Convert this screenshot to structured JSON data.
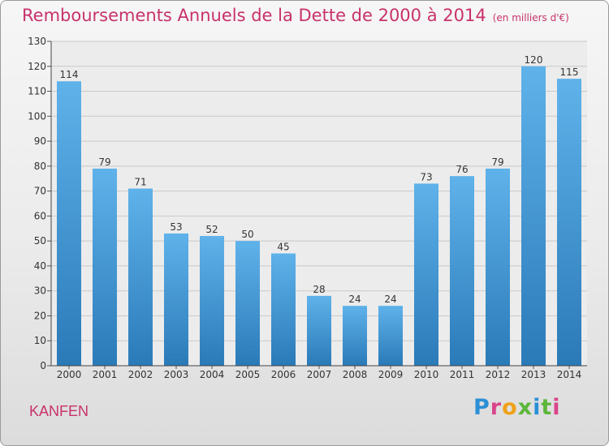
{
  "title": "Remboursements Annuels de la Dette de 2000 à 2014",
  "unit_note": "(en milliers d'€)",
  "commune": "KANFEN",
  "logo": {
    "text": "Proxiti",
    "colors": [
      "#2c8fd6",
      "#d9458a",
      "#f0a11a",
      "#5cb63b",
      "#2c8fd6",
      "#5cb63b",
      "#d9458a"
    ]
  },
  "colors": {
    "bar_top": "#5fb2ea",
    "bar_bottom": "#2a7ab8",
    "title": "#c8326b",
    "grid": "#c9c9c9"
  },
  "chart_data": {
    "type": "bar",
    "title": "Remboursements Annuels de la Dette de 2000 à 2014",
    "xlabel": "",
    "ylabel": "",
    "ylim": [
      0,
      130
    ],
    "yticks": [
      0,
      10,
      20,
      30,
      40,
      50,
      60,
      70,
      80,
      90,
      100,
      110,
      120,
      130
    ],
    "grid": true,
    "categories": [
      "2000",
      "2001",
      "2002",
      "2003",
      "2004",
      "2005",
      "2006",
      "2007",
      "2008",
      "2009",
      "2010",
      "2011",
      "2012",
      "2013",
      "2014"
    ],
    "values": [
      114,
      79,
      71,
      53,
      52,
      50,
      45,
      28,
      24,
      24,
      73,
      76,
      79,
      120,
      115
    ]
  }
}
